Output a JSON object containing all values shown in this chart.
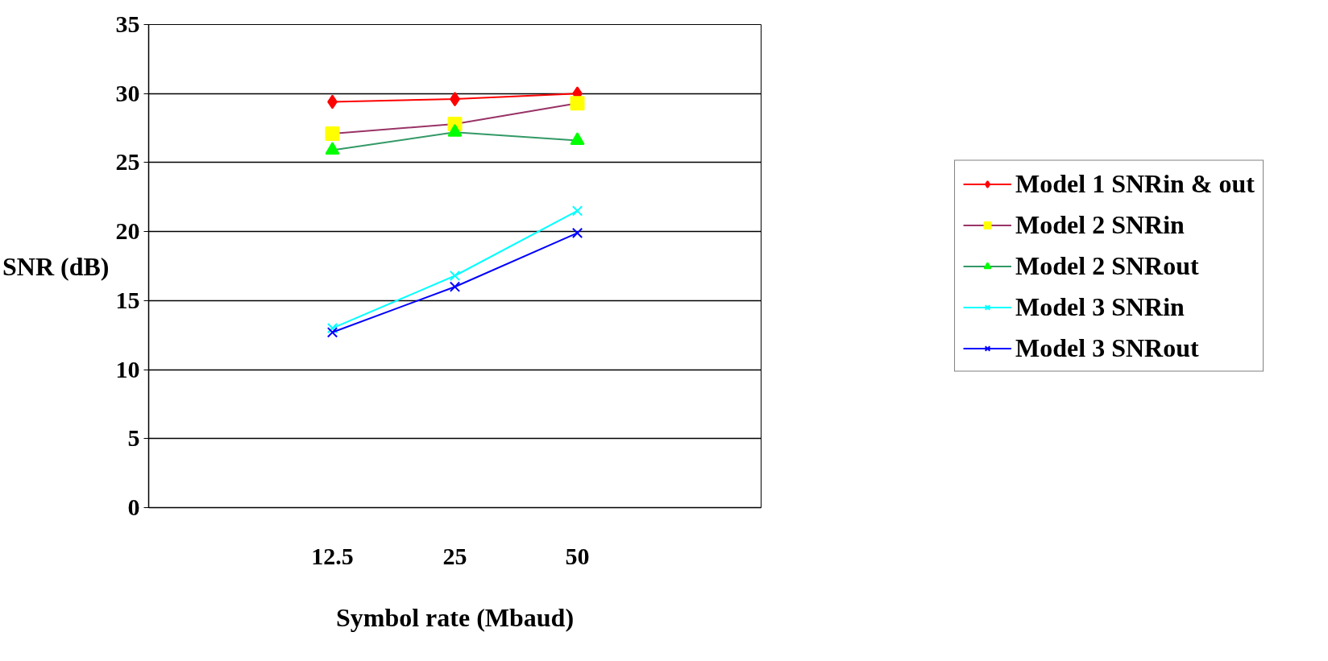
{
  "chart_data": {
    "type": "line",
    "xlabel": "Symbol rate (Mbaud)",
    "ylabel": "SNR (dB)",
    "categories": [
      null,
      "12.5",
      "25",
      "50",
      null
    ],
    "ylim": [
      0,
      35
    ],
    "yticks": [
      0,
      5,
      10,
      15,
      20,
      25,
      30,
      35
    ],
    "grid": "y",
    "legend": "right",
    "series": [
      {
        "name": "Model 1 SNRin & out",
        "color": "#ff0000",
        "colors": [
          "#ff0000",
          "#ff0000",
          "#ff0000",
          "#ff0000",
          "#ff0000"
        ],
        "marker": "diamond",
        "values": [
          null,
          29.4,
          29.6,
          30.0,
          null
        ]
      },
      {
        "name": "Model 2 SNRin",
        "color": "#993366",
        "colors": [
          "#ffff00",
          "#ffff00",
          "#ffff00",
          "#ffff00",
          "#ffff00"
        ],
        "marker": "square",
        "values": [
          null,
          27.1,
          27.8,
          29.3,
          null
        ]
      },
      {
        "name": "Model 2 SNRout",
        "color": "#339966",
        "colors": [
          "#00ff00",
          "#00ff00",
          "#00ff00",
          "#00ff00",
          "#00ff00"
        ],
        "marker": "triangle",
        "values": [
          null,
          25.9,
          27.2,
          26.6,
          null
        ]
      },
      {
        "name": "Model 3 SNRin",
        "color": "#00ffff",
        "colors": [
          "#00ffff",
          "#00ffff",
          "#00ffff",
          "#00ffff",
          "#00ffff"
        ],
        "marker": "cross",
        "values": [
          null,
          13.0,
          16.8,
          21.5,
          null
        ]
      },
      {
        "name": "Model 3 SNRout",
        "color": "#0000ff",
        "colors": [
          "#0000ff",
          "#0000ff",
          "#0000ff",
          "#0000ff",
          "#0000ff"
        ],
        "marker": "cross",
        "values": [
          null,
          12.7,
          16.0,
          19.9,
          null
        ]
      }
    ]
  }
}
